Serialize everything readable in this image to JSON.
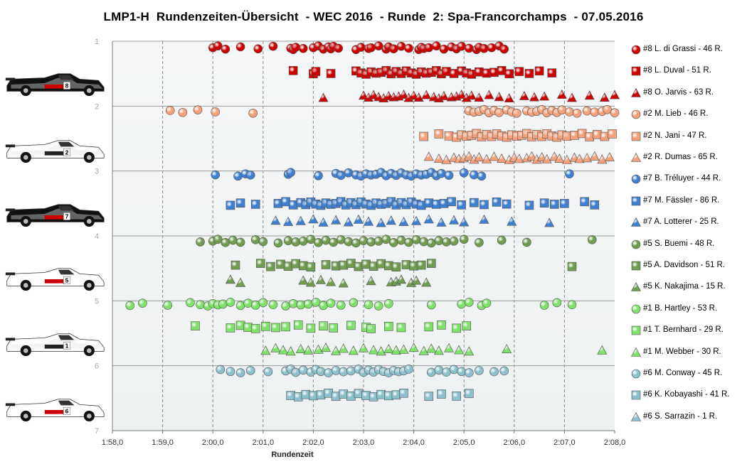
{
  "colors": {
    "s8": "#cc0000",
    "s2": "#f4a07a",
    "s7": "#3f7fd0",
    "s5": "#6f9c50",
    "s1": "#7fe06a",
    "s6": "#8cc0cc"
  },
  "chart_data": {
    "type": "scatter",
    "title": "LMP1-H  Rundenzeiten-Übersicht  - WEC 2016  - Runde  2: Spa-Francorchamps  - 07.05.2016",
    "xlabel": "Rundenzeit",
    "ylabel": "",
    "x_ticks": [
      "1:58,0",
      "1:59,0",
      "2:00,0",
      "2:01,0",
      "2:02,0",
      "2:03,0",
      "2:04,0",
      "2:05,0",
      "2:06,0",
      "2:07,0",
      "2:08,0"
    ],
    "xlim_seconds": [
      118,
      128
    ],
    "y_ticks": [
      "1",
      "2",
      "3",
      "4",
      "5",
      "6",
      "7"
    ],
    "ylim": [
      1,
      7
    ],
    "grid": true,
    "legend_position": "right",
    "series": [
      {
        "name": "#8 L. di Grassi - 46 R.",
        "marker": "circle",
        "color": "s8",
        "y": 1.1,
        "x": [
          120.0,
          120.1,
          120.25,
          120.55,
          120.9,
          121.2,
          121.55,
          121.6,
          121.65,
          121.8,
          122.0,
          122.1,
          122.2,
          122.3,
          122.35,
          122.4,
          122.5,
          122.85,
          122.95,
          123.1,
          123.15,
          123.3,
          123.45,
          123.5,
          123.6,
          123.75,
          123.9,
          124.1,
          124.15,
          124.2,
          124.3,
          124.45,
          124.6,
          124.75,
          124.85,
          124.95,
          125.1,
          125.25,
          125.3,
          125.4,
          125.55,
          125.7,
          125.8
        ]
      },
      {
        "name": "#8 L. Duval - 51 R.",
        "marker": "square",
        "color": "s8",
        "y": 1.48,
        "x": [
          121.6,
          122.0,
          122.05,
          122.35,
          122.85,
          122.95,
          123.05,
          123.15,
          123.25,
          123.35,
          123.45,
          123.55,
          123.65,
          123.75,
          123.85,
          123.95,
          124.05,
          124.15,
          124.25,
          124.35,
          124.45,
          124.55,
          124.65,
          124.8,
          124.95,
          125.05,
          125.15,
          125.3,
          125.45,
          125.6,
          125.75,
          125.9,
          126.1,
          126.3,
          126.5,
          126.75
        ]
      },
      {
        "name": "#8 O. Jarvis - 63 R.",
        "marker": "triangle",
        "color": "s8",
        "y": 1.85,
        "x": [
          122.2,
          123.0,
          123.1,
          123.2,
          123.3,
          123.4,
          123.5,
          123.6,
          123.7,
          123.8,
          123.9,
          124.0,
          124.1,
          124.25,
          124.4,
          124.5,
          124.6,
          124.75,
          124.85,
          124.95,
          125.05,
          125.15,
          125.3,
          125.5,
          125.7,
          125.9,
          126.2,
          126.4,
          126.6,
          126.95,
          127.15,
          127.5,
          127.8,
          128.0
        ]
      },
      {
        "name": "#2 M. Lieb - 46 R.",
        "marker": "circle",
        "color": "s2",
        "y": 2.08,
        "x": [
          119.15,
          119.4,
          119.7,
          120.05,
          120.8,
          125.1,
          125.2,
          125.3,
          125.4,
          125.5,
          125.6,
          125.7,
          125.85,
          125.95,
          126.05,
          126.25,
          126.35,
          126.45,
          126.55,
          126.65,
          126.75,
          126.85,
          126.95,
          127.1,
          127.25,
          127.45,
          127.6,
          127.75,
          127.85,
          128.0
        ]
      },
      {
        "name": "#2 N. Jani - 47 R.",
        "marker": "square",
        "color": "s2",
        "y": 2.45,
        "x": [
          124.2,
          124.5,
          124.7,
          124.85,
          124.95,
          125.05,
          125.15,
          125.25,
          125.35,
          125.45,
          125.55,
          125.65,
          125.75,
          125.85,
          125.95,
          126.05,
          126.15,
          126.25,
          126.35,
          126.45,
          126.55,
          126.65,
          126.75,
          126.85,
          126.95,
          127.05,
          127.2,
          127.35,
          127.5,
          127.65,
          127.8,
          127.95
        ]
      },
      {
        "name": "#2 R. Dumas - 65 R.",
        "marker": "triangle",
        "color": "s2",
        "y": 2.8,
        "x": [
          124.3,
          124.5,
          124.65,
          124.8,
          124.9,
          125.0,
          125.1,
          125.2,
          125.3,
          125.45,
          125.6,
          125.75,
          125.9,
          126.0,
          126.1,
          126.25,
          126.35,
          126.45,
          126.55,
          126.65,
          126.8,
          126.9,
          127.05,
          127.2,
          127.3,
          127.45,
          127.6,
          127.75,
          127.9
        ]
      },
      {
        "name": "#7 B. Tréluyer - 44 R.",
        "marker": "circle",
        "color": "s7",
        "y": 3.05,
        "x": [
          120.05,
          120.5,
          120.65,
          120.75,
          121.5,
          121.55,
          122.1,
          122.45,
          122.55,
          122.7,
          122.85,
          122.95,
          123.05,
          123.15,
          123.25,
          123.35,
          123.45,
          123.55,
          123.65,
          123.75,
          123.85,
          123.95,
          124.05,
          124.15,
          124.25,
          124.35,
          124.45,
          124.55,
          124.7,
          125.0,
          125.2,
          125.35,
          127.1
        ]
      },
      {
        "name": "#7 M. Fässler - 86 R.",
        "marker": "square",
        "color": "s7",
        "y": 3.5,
        "x": [
          120.35,
          120.55,
          120.85,
          121.3,
          121.45,
          121.6,
          121.75,
          121.85,
          121.95,
          122.05,
          122.15,
          122.25,
          122.35,
          122.45,
          122.55,
          122.65,
          122.75,
          122.85,
          122.95,
          123.05,
          123.15,
          123.25,
          123.35,
          123.45,
          123.55,
          123.65,
          123.75,
          123.85,
          123.95,
          124.05,
          124.15,
          124.3,
          124.45,
          124.6,
          124.75,
          124.95,
          125.2,
          125.4,
          125.65,
          125.85,
          126.3,
          126.6,
          126.8,
          127.0,
          127.4,
          127.6
        ]
      },
      {
        "name": "#7 A. Lotterer - 25 R.",
        "marker": "triangle",
        "color": "s7",
        "y": 3.77,
        "x": [
          121.25,
          121.5,
          121.75,
          122.0,
          122.2,
          122.45,
          122.7,
          122.9,
          123.1,
          123.35,
          123.55,
          123.8,
          124.05,
          124.3,
          124.55,
          124.8,
          125.0,
          125.4,
          125.95,
          126.7
        ]
      },
      {
        "name": "#5 S. Buemi - 48 R.",
        "marker": "circle",
        "color": "s5",
        "y": 4.08,
        "x": [
          119.75,
          120.0,
          120.1,
          120.25,
          120.4,
          120.55,
          120.85,
          121.0,
          121.3,
          121.5,
          121.65,
          121.8,
          121.95,
          122.1,
          122.25,
          122.4,
          122.55,
          122.7,
          122.85,
          123.0,
          123.15,
          123.3,
          123.45,
          123.6,
          123.75,
          123.9,
          124.05,
          124.2,
          124.35,
          124.5,
          124.65,
          124.8,
          125.0,
          125.3,
          125.75,
          126.25,
          127.55
        ]
      },
      {
        "name": "#5 A. Davidson - 51 R.",
        "marker": "square",
        "color": "s5",
        "y": 4.45,
        "x": [
          120.45,
          120.95,
          121.15,
          121.35,
          121.5,
          121.65,
          121.8,
          121.95,
          122.25,
          122.45,
          122.6,
          122.75,
          122.9,
          123.05,
          123.2,
          123.35,
          123.5,
          123.65,
          123.85,
          124.0,
          124.15,
          124.35,
          127.15
        ]
      },
      {
        "name": "#5 K. Nakajima - 15 R.",
        "marker": "triangle",
        "color": "s5",
        "y": 4.7,
        "x": [
          120.35,
          120.55,
          121.8,
          121.95,
          122.15,
          122.35,
          122.6,
          123.15,
          123.55,
          123.65,
          123.75,
          123.95,
          124.05,
          124.25
        ]
      },
      {
        "name": "#1 B. Hartley - 53 R.",
        "marker": "circle",
        "color": "s1",
        "y": 5.05,
        "x": [
          118.35,
          118.6,
          119.1,
          119.55,
          119.75,
          119.9,
          120.0,
          120.1,
          120.2,
          120.35,
          120.55,
          120.7,
          120.85,
          121.0,
          121.2,
          121.45,
          121.6,
          121.75,
          121.9,
          122.05,
          122.2,
          122.35,
          122.55,
          122.8,
          123.1,
          123.3,
          123.5,
          124.35,
          124.95,
          125.1,
          125.35,
          125.45,
          126.6,
          126.85,
          127.15
        ]
      },
      {
        "name": "#1 T. Bernhard - 29 R.",
        "marker": "square",
        "color": "s1",
        "y": 5.4,
        "x": [
          119.65,
          120.35,
          120.55,
          120.7,
          120.85,
          121.05,
          121.25,
          121.45,
          121.7,
          121.95,
          122.2,
          122.4,
          122.75,
          123.05,
          123.15,
          123.5,
          123.75,
          124.3,
          124.55,
          124.85,
          125.05
        ]
      },
      {
        "name": "#1 M. Webber - 30 R.",
        "marker": "triangle",
        "color": "s1",
        "y": 5.75,
        "x": [
          121.05,
          121.25,
          121.4,
          121.55,
          121.75,
          121.9,
          122.1,
          122.25,
          122.45,
          122.6,
          122.8,
          123.0,
          123.2,
          123.35,
          123.5,
          123.65,
          123.8,
          124.0,
          124.2,
          124.35,
          124.5,
          124.7,
          124.9,
          125.1,
          125.85,
          127.75
        ]
      },
      {
        "name": "#6 M. Conway - 45 R.",
        "marker": "circle",
        "color": "s6",
        "y": 6.08,
        "x": [
          120.15,
          120.35,
          120.55,
          120.75,
          121.1,
          121.45,
          121.55,
          121.65,
          121.8,
          121.95,
          122.05,
          122.15,
          122.3,
          122.45,
          122.6,
          122.75,
          122.9,
          123.0,
          123.1,
          123.2,
          123.3,
          123.4,
          123.5,
          123.6,
          123.7,
          123.8,
          123.9,
          124.35,
          124.5,
          124.65,
          124.8,
          124.95,
          125.1,
          125.3,
          125.6,
          125.8
        ]
      },
      {
        "name": "#6 K. Kobayashi - 41 R.",
        "marker": "square",
        "color": "s6",
        "y": 6.45,
        "x": [
          121.55,
          121.7,
          121.85,
          122.0,
          122.15,
          122.3,
          122.45,
          122.6,
          122.75,
          122.9,
          123.05,
          123.2,
          123.35,
          123.5,
          123.65,
          123.8,
          124.3,
          124.55,
          124.85,
          125.1
        ]
      },
      {
        "name": "#6 S. Sarrazin - 1 R.",
        "marker": "triangle",
        "color": "s6",
        "y": 6.8,
        "x": []
      }
    ]
  },
  "cars": [
    {
      "number": "8",
      "body": "#111111",
      "accent": "#cc0000",
      "band": "#ffffff"
    },
    {
      "number": "2",
      "body": "#ffffff",
      "accent": "#222222",
      "band": "#e0e0e0"
    },
    {
      "number": "7",
      "body": "#111111",
      "accent": "#cc0000",
      "band": "#ffffff"
    },
    {
      "number": "5",
      "body": "#ffffff",
      "accent": "#cc0000",
      "band": "#ffffff"
    },
    {
      "number": "1",
      "body": "#ffffff",
      "accent": "#222222",
      "band": "#e0e0e0"
    },
    {
      "number": "6",
      "body": "#ffffff",
      "accent": "#cc0000",
      "band": "#ffffff"
    }
  ]
}
